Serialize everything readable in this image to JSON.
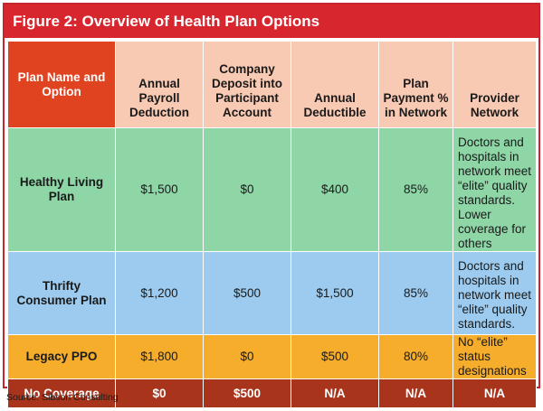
{
  "title": "Figure 2: Overview of Health Plan Options",
  "colors": {
    "title_bg": "#d8262e",
    "header_first_bg": "#e0431f",
    "header_bg": "#f8c9b3",
    "row_green": "#8fd6a7",
    "row_blue": "#9ccbef",
    "row_orange": "#f5ad2b",
    "row_red": "#a8341c"
  },
  "headers": [
    "Plan Name and Option",
    "Annual Payroll Deduction",
    "Company Deposit into Participant Account",
    "Annual Deductible",
    "Plan Payment % in Network",
    "Provider Network"
  ],
  "rows": [
    [
      "Healthy Living Plan",
      "$1,500",
      "$0",
      "$400",
      "85%",
      "Doctors and hospitals in network meet “elite” quality standards. Lower coverage for others"
    ],
    [
      "Thrifty Consumer Plan",
      "$1,200",
      "$500",
      "$1,500",
      "85%",
      "Doctors and hospitals in network meet “elite” quality standards."
    ],
    [
      "Legacy PPO",
      "$1,800",
      "$0",
      "$500",
      "80%",
      "No “elite” status designations"
    ],
    [
      "No Coverage",
      "$0",
      "$500",
      "N/A",
      "N/A",
      "N/A"
    ]
  ],
  "source": "Source: Sibson Consulting"
}
